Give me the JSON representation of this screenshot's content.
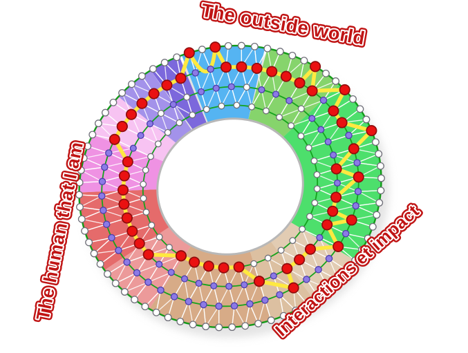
{
  "labels": {
    "top": {
      "text": "The outside world"
    },
    "left": {
      "text": "The human that I am"
    },
    "right": {
      "text": "Interactions et impact"
    }
  },
  "colors": {
    "label_red": "#c01414",
    "label_outline": "#ffffff",
    "ring_stroke": "#14a31c",
    "outer_border": "#129a18",
    "triangulation_line": "rgba(255,255,255,0.85)",
    "path_yellow": "#ffe940",
    "node_red_fill": "#ea1111",
    "node_red_stroke": "#8e0d0d",
    "node_purple_fill": "#8c7ae6",
    "node_purple_stroke": "#4c3caa",
    "node_white_fill": "#ffffff",
    "node_white_stroke": "#6e6e78",
    "hole_fill": "#ffffff",
    "hole_stroke": "#b8b8b8",
    "shadow": "#c9c9c9"
  },
  "diagram": {
    "hole_radius": 106,
    "outer_radius": 220,
    "sectors": [
      {
        "name": "blue",
        "from": 357,
        "to": 390,
        "color": "#55b4f2"
      },
      {
        "name": "green-light",
        "from": 30,
        "to": 62,
        "color": "#86d46c"
      },
      {
        "name": "green-bright",
        "from": 62,
        "to": 140,
        "color": "#4ddf6c"
      },
      {
        "name": "tan-lighter",
        "from": 140,
        "to": 162,
        "color": "#e2ccb3"
      },
      {
        "name": "tan-light",
        "from": 162,
        "to": 180,
        "color": "#dcc0a1"
      },
      {
        "name": "tan-dark",
        "from": 180,
        "to": 228,
        "color": "#d7ab87"
      },
      {
        "name": "red-light",
        "from": 228,
        "to": 252,
        "color": "#ec9a9a"
      },
      {
        "name": "red-dark",
        "from": 252,
        "to": 286,
        "color": "#e56b6b"
      },
      {
        "name": "pink-dark",
        "from": 286,
        "to": 310,
        "color": "#ef92e3"
      },
      {
        "name": "pink-light",
        "from": 310,
        "to": 328,
        "color": "#f7c3f2"
      },
      {
        "name": "purple-light",
        "from": 328,
        "to": 344,
        "color": "#a392ea"
      },
      {
        "name": "purple-dark",
        "from": 344,
        "to": 357,
        "color": "#7c68dc"
      }
    ],
    "rings": [
      {
        "id": "A",
        "radius": 220,
        "nodes": 72,
        "node_color": "white",
        "node_r": 4.8
      },
      {
        "id": "B",
        "radius": 187,
        "nodes": 52,
        "node_color": "purple",
        "node_r": 4.6
      },
      {
        "id": "C",
        "radius": 156,
        "nodes": 44,
        "node_color": "purple",
        "node_r": 4.4,
        "white_node_indices": [
          3,
          7,
          15,
          22,
          41,
          43
        ]
      },
      {
        "id": "D",
        "radius": 127,
        "nodes": 36,
        "node_color": "white",
        "node_r": 4.3
      }
    ],
    "score_path": [
      [
        346,
        "B"
      ],
      [
        352,
        "B"
      ],
      [
        359,
        "A"
      ],
      [
        9,
        "A"
      ],
      [
        15,
        "B"
      ],
      [
        21,
        "B"
      ],
      [
        27,
        "B"
      ],
      [
        33,
        "B"
      ],
      [
        39,
        "B"
      ],
      [
        45,
        "B"
      ],
      [
        52,
        "A"
      ],
      [
        58,
        "B"
      ],
      [
        64,
        "A"
      ],
      [
        71,
        "B"
      ],
      [
        78,
        "B"
      ],
      [
        85,
        "A"
      ],
      [
        92,
        "B"
      ],
      [
        99,
        "C"
      ],
      [
        106,
        "B"
      ],
      [
        113,
        "C"
      ],
      [
        120,
        "C"
      ],
      [
        127,
        "B"
      ],
      [
        134,
        "C"
      ],
      [
        141,
        "B"
      ],
      [
        148,
        "C"
      ],
      [
        155,
        "C"
      ],
      [
        162,
        "C"
      ],
      [
        168,
        "B"
      ],
      [
        176,
        "C"
      ],
      [
        184,
        "C"
      ],
      [
        192,
        "D"
      ],
      [
        200,
        "D"
      ],
      [
        209,
        "D"
      ],
      [
        218,
        "D"
      ],
      [
        226,
        "D"
      ],
      [
        234,
        "D"
      ],
      [
        242,
        "C"
      ],
      [
        250,
        "C"
      ],
      [
        258,
        "C"
      ],
      [
        266,
        "C"
      ],
      [
        274,
        "C"
      ],
      [
        282,
        "C"
      ],
      [
        290,
        "C"
      ],
      [
        297,
        "C"
      ],
      [
        303,
        "C"
      ],
      [
        309,
        "B"
      ],
      [
        315,
        "B"
      ],
      [
        321,
        "B"
      ],
      [
        327,
        "B"
      ],
      [
        333,
        "B"
      ],
      [
        339,
        "B"
      ]
    ],
    "path_dip_between": [
      2,
      3
    ],
    "path_dip_control_radius": 150
  }
}
